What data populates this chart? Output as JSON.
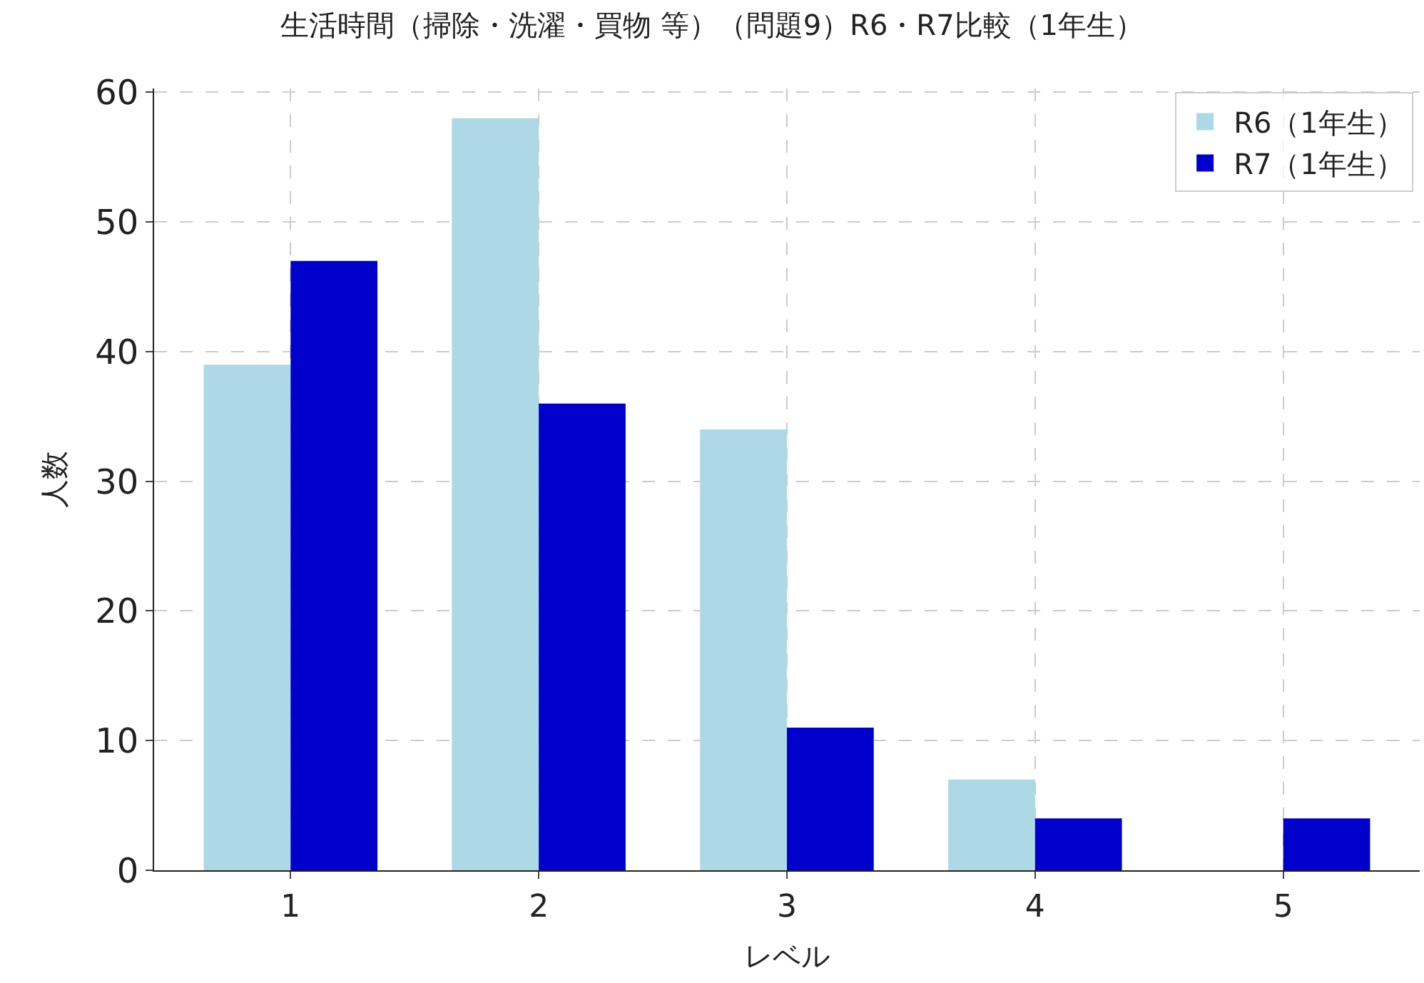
{
  "chart_data": {
    "type": "bar",
    "title": "生活時間（掃除・洗濯・買物 等）（問題9）R6・R7比較（1年生）",
    "xlabel": "レベル",
    "ylabel": "人数",
    "categories": [
      "1",
      "2",
      "3",
      "4",
      "5"
    ],
    "series": [
      {
        "name": "R6（1年生）",
        "color": "#add8e6",
        "values": [
          39,
          58,
          34,
          7,
          0
        ]
      },
      {
        "name": "R7（1年生）",
        "color": "#0000cd",
        "values": [
          47,
          36,
          11,
          4,
          4
        ]
      }
    ],
    "ylim": [
      0,
      60.3
    ],
    "yticks": [
      0,
      10,
      20,
      30,
      40,
      50,
      60
    ],
    "grid": true,
    "legend": "top right"
  }
}
